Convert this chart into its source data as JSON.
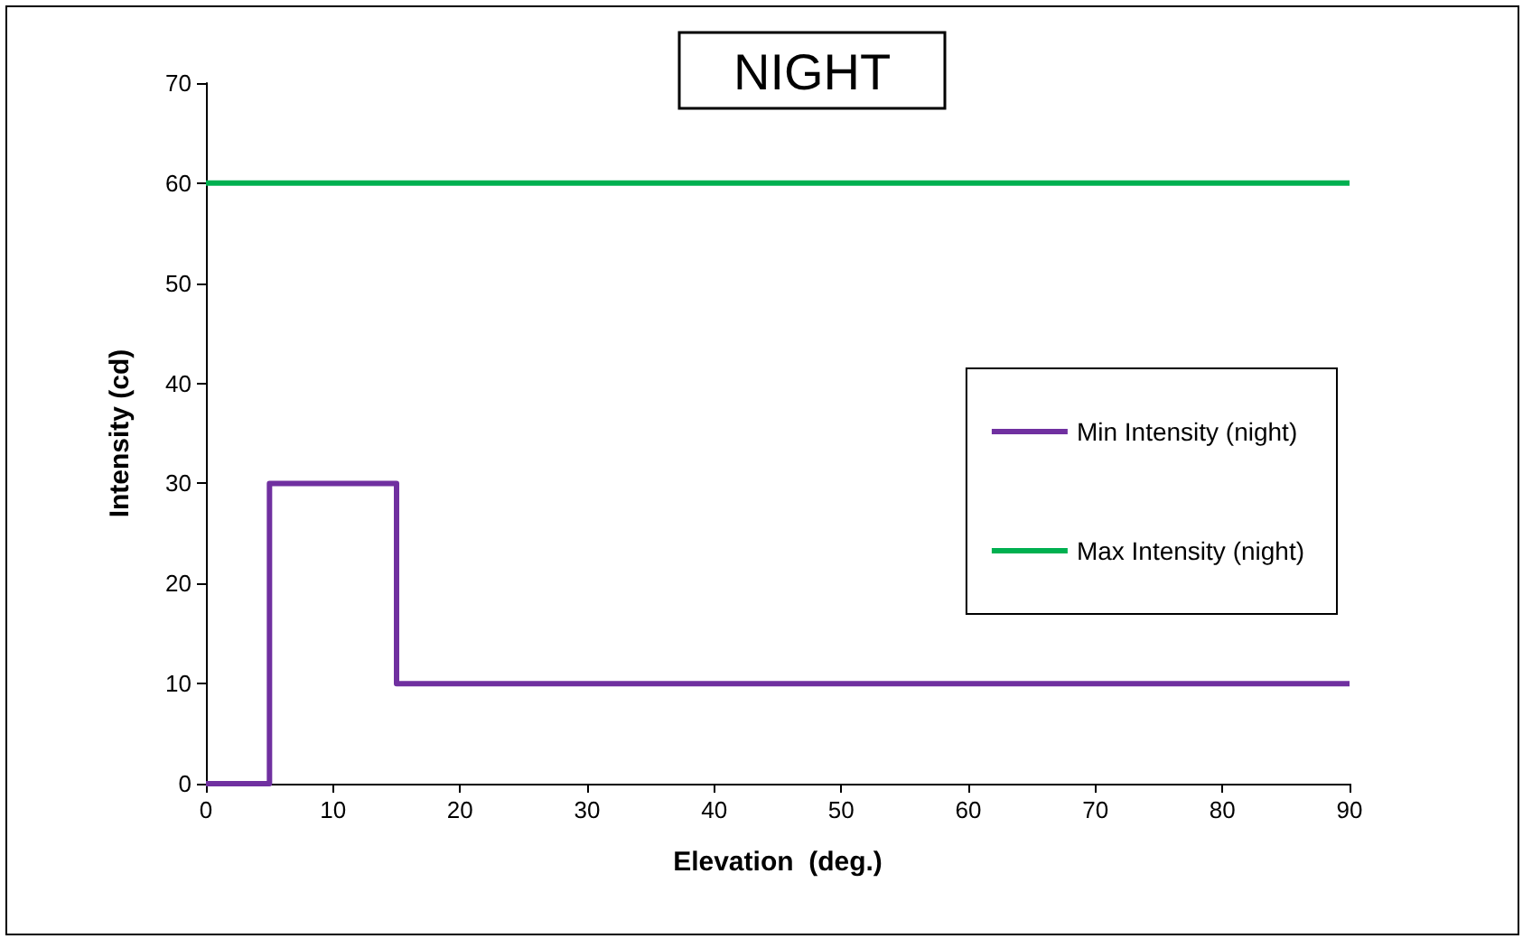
{
  "chart_data": {
    "type": "line",
    "title": "NIGHT",
    "xlabel": "Elevation  (deg.)",
    "ylabel": "Intensity (cd)",
    "series": [
      {
        "name": "Min Intensity (night)",
        "color": "#7030a0",
        "x": [
          0,
          5,
          5,
          15,
          15,
          90
        ],
        "values": [
          0,
          0,
          30,
          30,
          10,
          10
        ]
      },
      {
        "name": "Max Intensity (night)",
        "color": "#00b050",
        "x": [
          0,
          90
        ],
        "values": [
          60,
          60
        ]
      }
    ],
    "xlim": [
      0,
      90
    ],
    "xticks": [
      0,
      10,
      20,
      30,
      40,
      50,
      60,
      70,
      80,
      90
    ],
    "ylim": [
      0,
      70
    ],
    "yticks": [
      0,
      10,
      20,
      30,
      40,
      50,
      60,
      70
    ],
    "grid": false,
    "legend": "right",
    "marker": "none",
    "line_style": "solid"
  }
}
